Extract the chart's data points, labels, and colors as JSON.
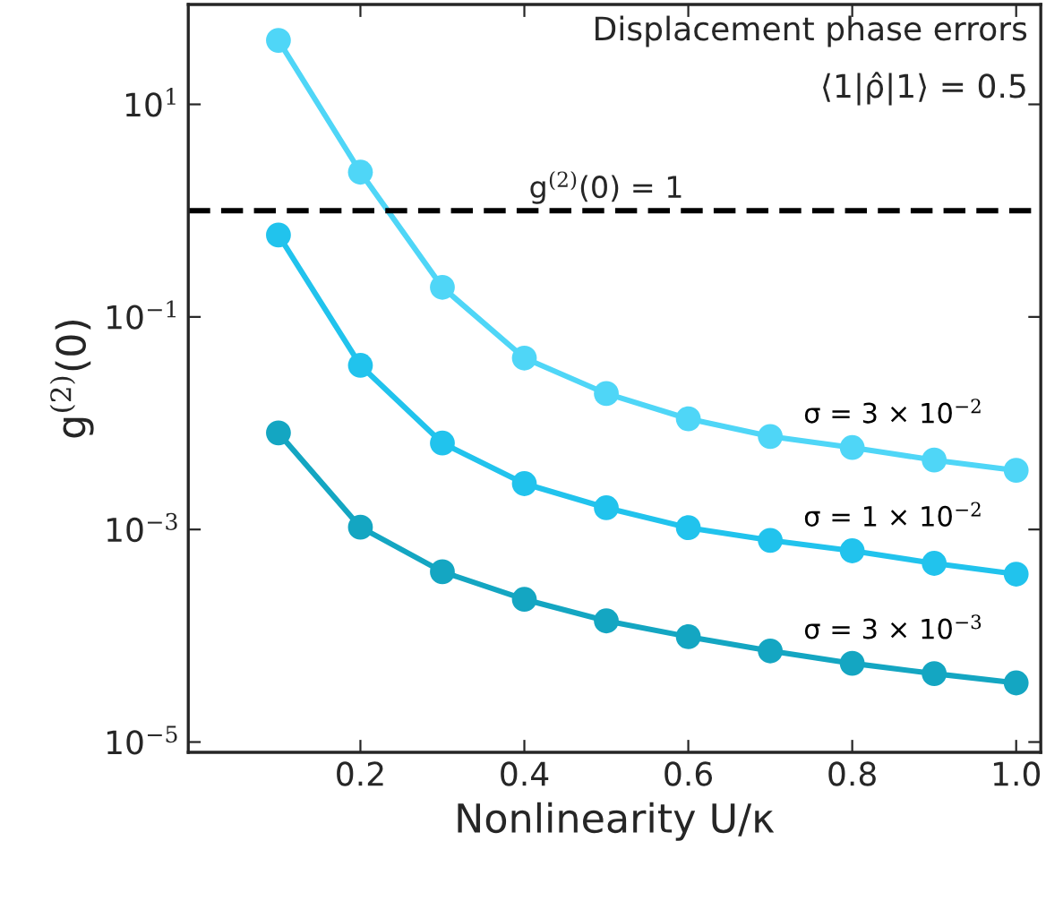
{
  "chart_data": {
    "type": "line",
    "xlabel": "Nonlinearity U/κ",
    "ylabel": "g$^{(2)}$(0)",
    "annotations": [
      "Displacement phase errors",
      "⟨1|ρ̂|1⟩ = 0.5"
    ],
    "x": [
      0.1,
      0.2,
      0.3,
      0.4,
      0.5,
      0.6,
      0.7,
      0.8,
      0.9,
      1.0
    ],
    "series": [
      {
        "name": "σ = 3 × 10$^{−2}$",
        "color": "#4fd6f7",
        "values": [
          40,
          2.3,
          0.19,
          0.041,
          0.019,
          0.011,
          0.0075,
          0.0059,
          0.0045,
          0.0036
        ]
      },
      {
        "name": "σ = 1 × 10$^{−2}$",
        "color": "#21c3ed",
        "values": [
          0.59,
          0.035,
          0.0065,
          0.0027,
          0.0016,
          0.00104,
          0.00079,
          0.00063,
          0.00048,
          0.00038
        ]
      },
      {
        "name": "σ = 3 × 10$^{−3}$",
        "color": "#14a6c2",
        "values": [
          0.0081,
          0.00105,
          0.0004,
          0.00022,
          0.000138,
          9.8e-05,
          7.2e-05,
          5.5e-05,
          4.4e-05,
          3.6e-05
        ]
      }
    ],
    "log": "y",
    "marker": "circle",
    "line_style": "solid",
    "grid": false,
    "legend": false,
    "xlim": [
      -0.01,
      1.03
    ],
    "xticks": [
      0.2,
      0.4,
      0.6,
      0.8,
      {
        "value": 1.0,
        "label": "1.0"
      }
    ],
    "ylim": [
      8e-06,
      87
    ],
    "yticks": [
      {
        "value": 10,
        "label": "10$^{1}$"
      },
      {
        "value": 0.1,
        "label": "10$^{−1}$"
      },
      {
        "value": 0.001,
        "label": "10$^{−3}$"
      },
      {
        "value": 1e-05,
        "label": "10$^{−5}$"
      }
    ],
    "ref_lines": [
      {
        "axis": "y",
        "value": 1,
        "label": "g$^{(2)}$(0) = 1",
        "color": "#000000",
        "line_style": "dashed"
      }
    ]
  }
}
